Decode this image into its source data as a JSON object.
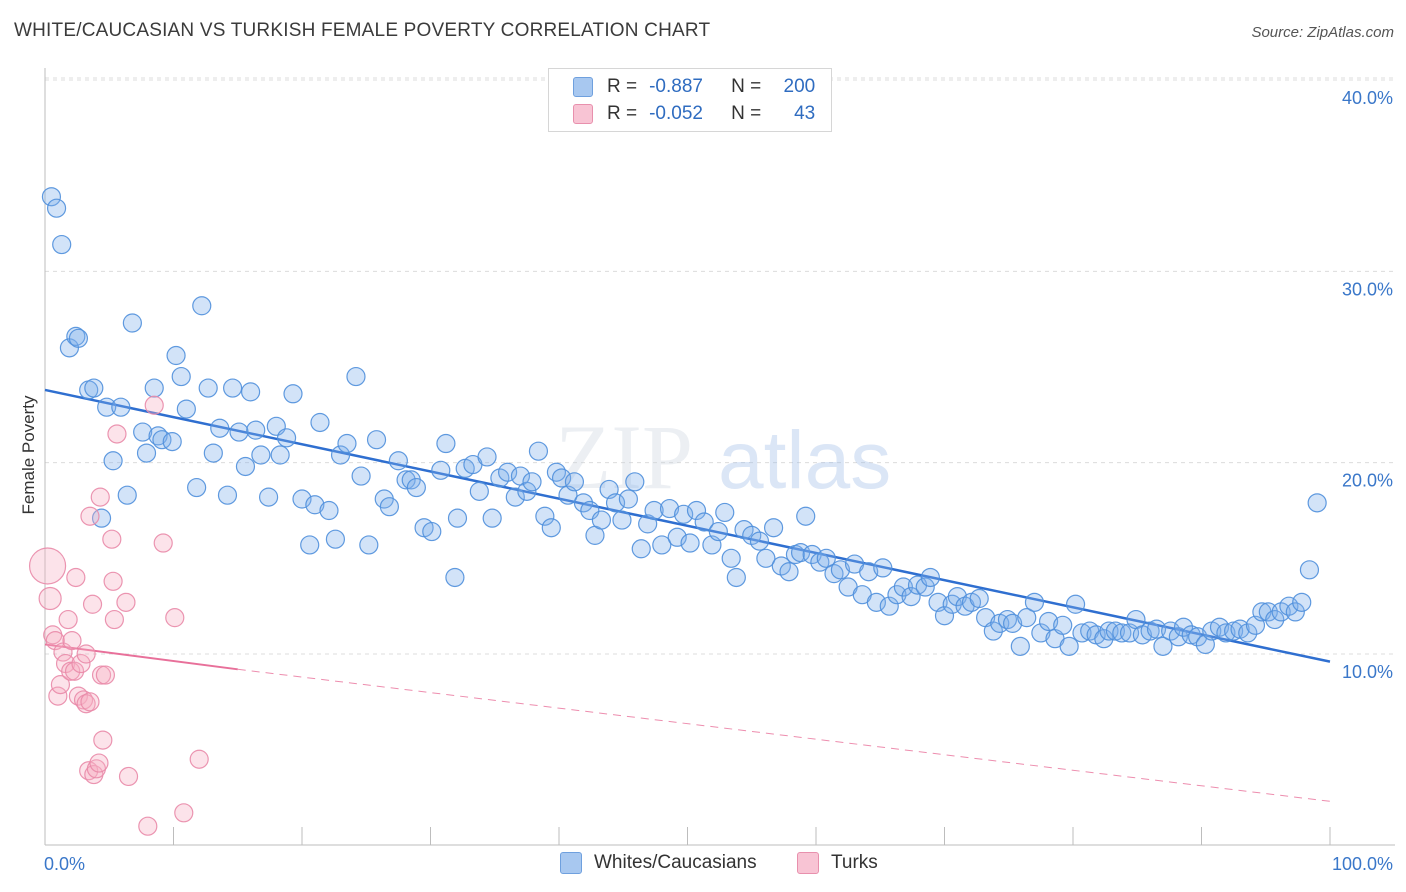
{
  "title": "WHITE/CAUCASIAN VS TURKISH FEMALE POVERTY CORRELATION CHART",
  "source": "Source: ZipAtlas.com",
  "watermark": {
    "zip": "ZIP",
    "atlas": "atlas"
  },
  "legend": {
    "r_label": "R =",
    "n_label": "N =",
    "rows": [
      {
        "r": "-0.887",
        "n": "200",
        "color": "#a8c8f0",
        "border": "#6fa0de"
      },
      {
        "r": "-0.052",
        "n": "43",
        "color": "#f8c4d4",
        "border": "#e890ad"
      }
    ]
  },
  "bottom_legend": [
    {
      "label": "Whites/Caucasians",
      "color": "#a8c8f0",
      "border": "#6fa0de"
    },
    {
      "label": "Turks",
      "color": "#f8c4d4",
      "border": "#e890ad"
    }
  ],
  "chart_data": {
    "type": "scatter",
    "title": "WHITE/CAUCASIAN VS TURKISH FEMALE POVERTY CORRELATION CHART",
    "xlabel": "",
    "ylabel": "Female Poverty",
    "xlim": [
      0,
      100
    ],
    "ylim": [
      0,
      42
    ],
    "x_tick_labels": [
      "0.0%",
      "100.0%"
    ],
    "y_ticks": [
      10,
      20,
      30,
      40
    ],
    "y_tick_labels": [
      "10.0%",
      "20.0%",
      "30.0%",
      "40.0%"
    ],
    "grid": true,
    "series": [
      {
        "name": "Whites/Caucasians",
        "color": "#7fb0ea",
        "stroke": "#4f8fdc",
        "trend": {
          "x": [
            0,
            100
          ],
          "y": [
            23.8,
            9.6
          ],
          "style": "solid",
          "color": "#2f6fd0"
        },
        "points": [
          [
            0.5,
            33.9
          ],
          [
            0.9,
            33.3
          ],
          [
            1.3,
            31.4
          ],
          [
            1.9,
            26.0
          ],
          [
            2.4,
            26.6
          ],
          [
            2.6,
            26.5
          ],
          [
            3.4,
            23.8
          ],
          [
            3.8,
            23.9
          ],
          [
            4.4,
            17.1
          ],
          [
            4.8,
            22.9
          ],
          [
            5.3,
            20.1
          ],
          [
            5.9,
            22.9
          ],
          [
            6.4,
            18.3
          ],
          [
            6.8,
            27.3
          ],
          [
            7.6,
            21.6
          ],
          [
            7.9,
            20.5
          ],
          [
            8.5,
            23.9
          ],
          [
            8.8,
            21.4
          ],
          [
            9.1,
            21.2
          ],
          [
            9.9,
            21.1
          ],
          [
            10.2,
            25.6
          ],
          [
            10.6,
            24.5
          ],
          [
            11.0,
            22.8
          ],
          [
            11.8,
            18.7
          ],
          [
            12.2,
            28.2
          ],
          [
            12.7,
            23.9
          ],
          [
            13.1,
            20.5
          ],
          [
            13.6,
            21.8
          ],
          [
            14.2,
            18.3
          ],
          [
            14.6,
            23.9
          ],
          [
            15.1,
            21.6
          ],
          [
            15.6,
            19.8
          ],
          [
            16.0,
            23.7
          ],
          [
            16.4,
            21.7
          ],
          [
            16.8,
            20.4
          ],
          [
            17.4,
            18.2
          ],
          [
            18.0,
            21.9
          ],
          [
            18.3,
            20.4
          ],
          [
            18.8,
            21.3
          ],
          [
            19.3,
            23.6
          ],
          [
            20.0,
            18.1
          ],
          [
            20.6,
            15.7
          ],
          [
            21.0,
            17.8
          ],
          [
            21.4,
            22.1
          ],
          [
            22.1,
            17.5
          ],
          [
            22.6,
            16.0
          ],
          [
            23.0,
            20.4
          ],
          [
            23.5,
            21.0
          ],
          [
            24.2,
            24.5
          ],
          [
            24.6,
            19.3
          ],
          [
            25.2,
            15.7
          ],
          [
            25.8,
            21.2
          ],
          [
            26.4,
            18.1
          ],
          [
            26.8,
            17.7
          ],
          [
            27.5,
            20.1
          ],
          [
            28.1,
            19.1
          ],
          [
            28.5,
            19.1
          ],
          [
            28.9,
            18.7
          ],
          [
            29.5,
            16.6
          ],
          [
            30.1,
            16.4
          ],
          [
            30.8,
            19.6
          ],
          [
            31.2,
            21.0
          ],
          [
            31.9,
            14.0
          ],
          [
            32.1,
            17.1
          ],
          [
            32.7,
            19.7
          ],
          [
            33.3,
            19.9
          ],
          [
            33.8,
            18.5
          ],
          [
            34.4,
            20.3
          ],
          [
            34.8,
            17.1
          ],
          [
            35.4,
            19.2
          ],
          [
            36.0,
            19.5
          ],
          [
            36.6,
            18.2
          ],
          [
            37.0,
            19.3
          ],
          [
            37.5,
            18.5
          ],
          [
            37.9,
            19.0
          ],
          [
            38.4,
            20.6
          ],
          [
            38.9,
            17.2
          ],
          [
            39.4,
            16.6
          ],
          [
            39.8,
            19.5
          ],
          [
            40.2,
            19.2
          ],
          [
            40.7,
            18.3
          ],
          [
            41.2,
            19.0
          ],
          [
            41.9,
            17.9
          ],
          [
            42.4,
            17.5
          ],
          [
            42.8,
            16.2
          ],
          [
            43.3,
            17.0
          ],
          [
            43.9,
            18.6
          ],
          [
            44.4,
            17.9
          ],
          [
            44.9,
            17.0
          ],
          [
            45.4,
            18.1
          ],
          [
            45.9,
            19.0
          ],
          [
            46.4,
            15.5
          ],
          [
            46.9,
            16.8
          ],
          [
            47.4,
            17.5
          ],
          [
            48.0,
            15.7
          ],
          [
            48.6,
            17.6
          ],
          [
            49.2,
            16.1
          ],
          [
            49.7,
            17.3
          ],
          [
            50.2,
            15.8
          ],
          [
            50.7,
            17.5
          ],
          [
            51.3,
            16.9
          ],
          [
            51.9,
            15.7
          ],
          [
            52.4,
            16.4
          ],
          [
            52.9,
            17.4
          ],
          [
            53.4,
            15.0
          ],
          [
            53.8,
            14.0
          ],
          [
            54.4,
            16.5
          ],
          [
            55.0,
            16.2
          ],
          [
            55.6,
            15.9
          ],
          [
            56.1,
            15.0
          ],
          [
            56.7,
            16.6
          ],
          [
            57.3,
            14.6
          ],
          [
            57.9,
            14.3
          ],
          [
            58.4,
            15.2
          ],
          [
            58.8,
            15.3
          ],
          [
            59.2,
            17.2
          ],
          [
            59.7,
            15.2
          ],
          [
            60.3,
            14.8
          ],
          [
            60.8,
            15.0
          ],
          [
            61.4,
            14.2
          ],
          [
            61.9,
            14.4
          ],
          [
            62.5,
            13.5
          ],
          [
            63.0,
            14.7
          ],
          [
            63.6,
            13.1
          ],
          [
            64.1,
            14.3
          ],
          [
            64.7,
            12.7
          ],
          [
            65.2,
            14.5
          ],
          [
            65.7,
            12.5
          ],
          [
            66.3,
            13.1
          ],
          [
            66.8,
            13.5
          ],
          [
            67.4,
            13.0
          ],
          [
            67.9,
            13.6
          ],
          [
            68.5,
            13.5
          ],
          [
            68.9,
            14.0
          ],
          [
            69.5,
            12.7
          ],
          [
            70.0,
            12.0
          ],
          [
            70.6,
            12.6
          ],
          [
            71.0,
            13.0
          ],
          [
            71.6,
            12.5
          ],
          [
            72.1,
            12.7
          ],
          [
            72.7,
            12.9
          ],
          [
            73.2,
            11.9
          ],
          [
            73.8,
            11.2
          ],
          [
            74.3,
            11.6
          ],
          [
            74.9,
            11.8
          ],
          [
            75.3,
            11.6
          ],
          [
            75.9,
            10.4
          ],
          [
            76.4,
            11.9
          ],
          [
            77.0,
            12.7
          ],
          [
            77.5,
            11.1
          ],
          [
            78.1,
            11.7
          ],
          [
            78.6,
            10.8
          ],
          [
            79.2,
            11.5
          ],
          [
            79.7,
            10.4
          ],
          [
            80.2,
            12.6
          ],
          [
            80.7,
            11.1
          ],
          [
            81.3,
            11.2
          ],
          [
            81.8,
            11.0
          ],
          [
            82.4,
            10.8
          ],
          [
            82.8,
            11.2
          ],
          [
            83.3,
            11.2
          ],
          [
            83.8,
            11.1
          ],
          [
            84.4,
            11.1
          ],
          [
            84.9,
            11.8
          ],
          [
            85.4,
            11.0
          ],
          [
            86.0,
            11.2
          ],
          [
            86.5,
            11.3
          ],
          [
            87.0,
            10.4
          ],
          [
            87.6,
            11.2
          ],
          [
            88.2,
            10.9
          ],
          [
            88.6,
            11.4
          ],
          [
            89.2,
            11.0
          ],
          [
            89.7,
            10.9
          ],
          [
            90.3,
            10.5
          ],
          [
            90.8,
            11.2
          ],
          [
            91.4,
            11.4
          ],
          [
            91.9,
            11.1
          ],
          [
            92.5,
            11.2
          ],
          [
            93.0,
            11.3
          ],
          [
            93.6,
            11.1
          ],
          [
            94.2,
            11.5
          ],
          [
            94.7,
            12.2
          ],
          [
            95.2,
            12.2
          ],
          [
            95.7,
            11.8
          ],
          [
            96.2,
            12.2
          ],
          [
            96.8,
            12.5
          ],
          [
            97.3,
            12.2
          ],
          [
            97.8,
            12.7
          ],
          [
            98.4,
            14.4
          ],
          [
            99.0,
            17.9
          ]
        ]
      },
      {
        "name": "Turks",
        "color": "#f5aec4",
        "stroke": "#e98aa9",
        "trend": {
          "x": [
            0,
            15
          ],
          "y": [
            10.5,
            9.2
          ],
          "style": "solid",
          "dashed_extension_to": [
            100,
            2.3
          ],
          "color": "#e8709a"
        },
        "points": [
          [
            0.2,
            14.6,
            3
          ],
          [
            0.4,
            12.9,
            2
          ],
          [
            0.6,
            11.0,
            1
          ],
          [
            0.8,
            10.7,
            1
          ],
          [
            1.0,
            7.8,
            1
          ],
          [
            1.2,
            8.4,
            1
          ],
          [
            1.4,
            10.1,
            1
          ],
          [
            1.6,
            9.5,
            1
          ],
          [
            1.8,
            11.8,
            1
          ],
          [
            2.0,
            9.1,
            1
          ],
          [
            2.1,
            10.7,
            1
          ],
          [
            2.3,
            9.1,
            1
          ],
          [
            2.4,
            14.0,
            1
          ],
          [
            2.6,
            7.8,
            1
          ],
          [
            2.8,
            9.5,
            1
          ],
          [
            3.0,
            7.6,
            1
          ],
          [
            3.2,
            7.4,
            1
          ],
          [
            3.2,
            10.0,
            1
          ],
          [
            3.4,
            3.9,
            1
          ],
          [
            3.5,
            7.5,
            1
          ],
          [
            3.5,
            17.2,
            1
          ],
          [
            3.7,
            12.6,
            1
          ],
          [
            3.8,
            3.7,
            1
          ],
          [
            4.0,
            4.0,
            1
          ],
          [
            4.2,
            4.3,
            1
          ],
          [
            4.3,
            18.2,
            1
          ],
          [
            4.4,
            8.9,
            1
          ],
          [
            4.5,
            5.5,
            1
          ],
          [
            4.7,
            8.9,
            1
          ],
          [
            5.2,
            16.0,
            1
          ],
          [
            5.3,
            13.8,
            1
          ],
          [
            5.4,
            11.8,
            1
          ],
          [
            5.6,
            21.5,
            1
          ],
          [
            6.3,
            12.7,
            1
          ],
          [
            6.5,
            3.6,
            1
          ],
          [
            8.0,
            1.0,
            1
          ],
          [
            8.5,
            23.0,
            1
          ],
          [
            9.2,
            15.8,
            1
          ],
          [
            10.1,
            11.9,
            1
          ],
          [
            10.8,
            1.7,
            1
          ],
          [
            12.0,
            4.5,
            1
          ]
        ]
      }
    ]
  }
}
